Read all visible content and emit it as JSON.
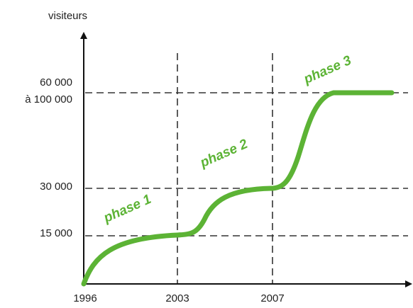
{
  "chart_data": {
    "type": "line",
    "ylabel": "visiteurs",
    "xlabel": "",
    "x_ticks": [
      "1996",
      "2003",
      "2007"
    ],
    "y_ticks": [
      {
        "lines": [
          "15 000"
        ]
      },
      {
        "lines": [
          "30 000"
        ]
      },
      {
        "lines": [
          "60 000",
          "à 100 000"
        ]
      }
    ],
    "levels": [
      "0",
      "15 000",
      "30 000",
      "60 000 à 100 000"
    ],
    "series": [
      {
        "phases": [
          {
            "label": "phase 1",
            "from": "1996",
            "to": "2003",
            "start_level": 0,
            "end_level": 1
          },
          {
            "label": "phase 2",
            "from": "2003",
            "to": "2007",
            "start_level": 1,
            "end_level": 2
          },
          {
            "label": "phase 3",
            "from": "2007",
            "to": "",
            "start_level": 2,
            "end_level": 3
          }
        ]
      }
    ],
    "grid": "dashed",
    "colors": {
      "curve": "#5cb335",
      "phase_text": "#5cb335",
      "axis": "#111111",
      "grid": "#333333"
    }
  }
}
